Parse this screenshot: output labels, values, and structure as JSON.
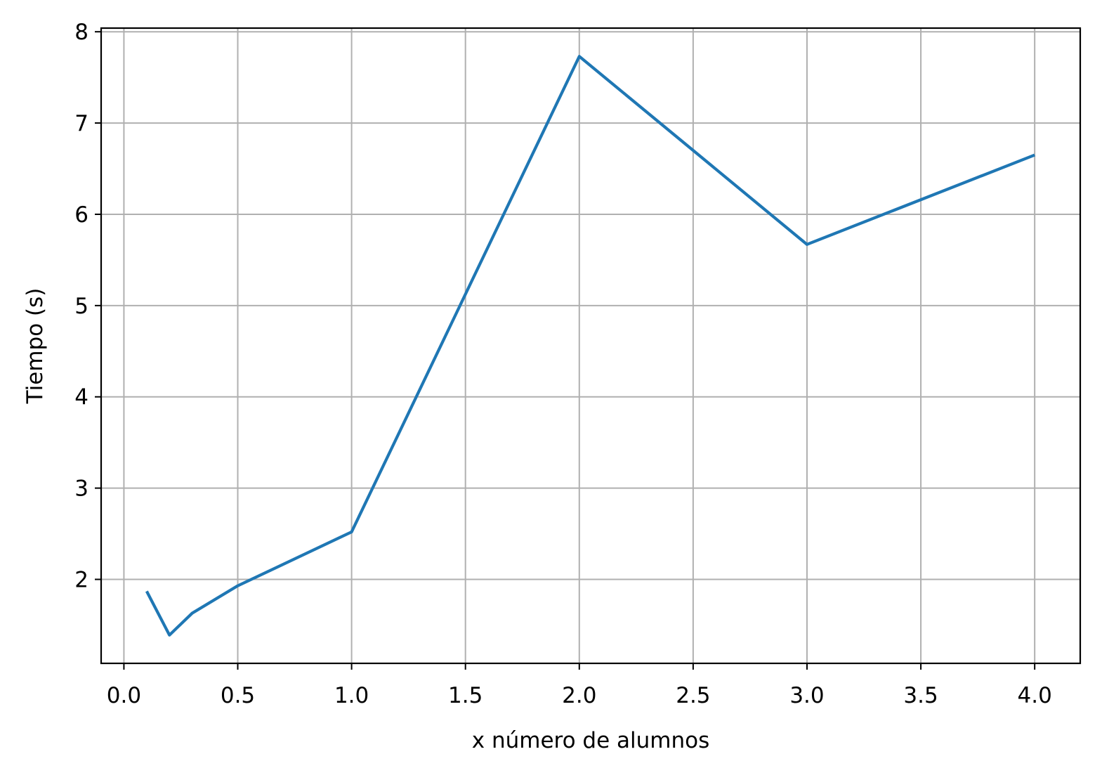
{
  "chart_data": {
    "type": "line",
    "title": "",
    "xlabel": "x número de alumnos",
    "ylabel": "Tiempo (s)",
    "xlim": [
      -0.1,
      4.2
    ],
    "ylim": [
      1.08,
      8.04
    ],
    "xticks": [
      0.0,
      0.5,
      1.0,
      1.5,
      2.0,
      2.5,
      3.0,
      3.5,
      4.0
    ],
    "xtick_labels": [
      "0.0",
      "0.5",
      "1.0",
      "1.5",
      "2.0",
      "2.5",
      "3.0",
      "3.5",
      "4.0"
    ],
    "yticks": [
      2,
      3,
      4,
      5,
      6,
      7,
      8
    ],
    "ytick_labels": [
      "2",
      "3",
      "4",
      "5",
      "6",
      "7",
      "8"
    ],
    "grid": true,
    "series": [
      {
        "color": "#1f77b4",
        "x": [
          0.1,
          0.2,
          0.3,
          0.5,
          1.0,
          2.0,
          3.0,
          4.0
        ],
        "y": [
          1.87,
          1.39,
          1.63,
          1.93,
          2.52,
          7.73,
          5.67,
          6.65
        ]
      }
    ]
  }
}
